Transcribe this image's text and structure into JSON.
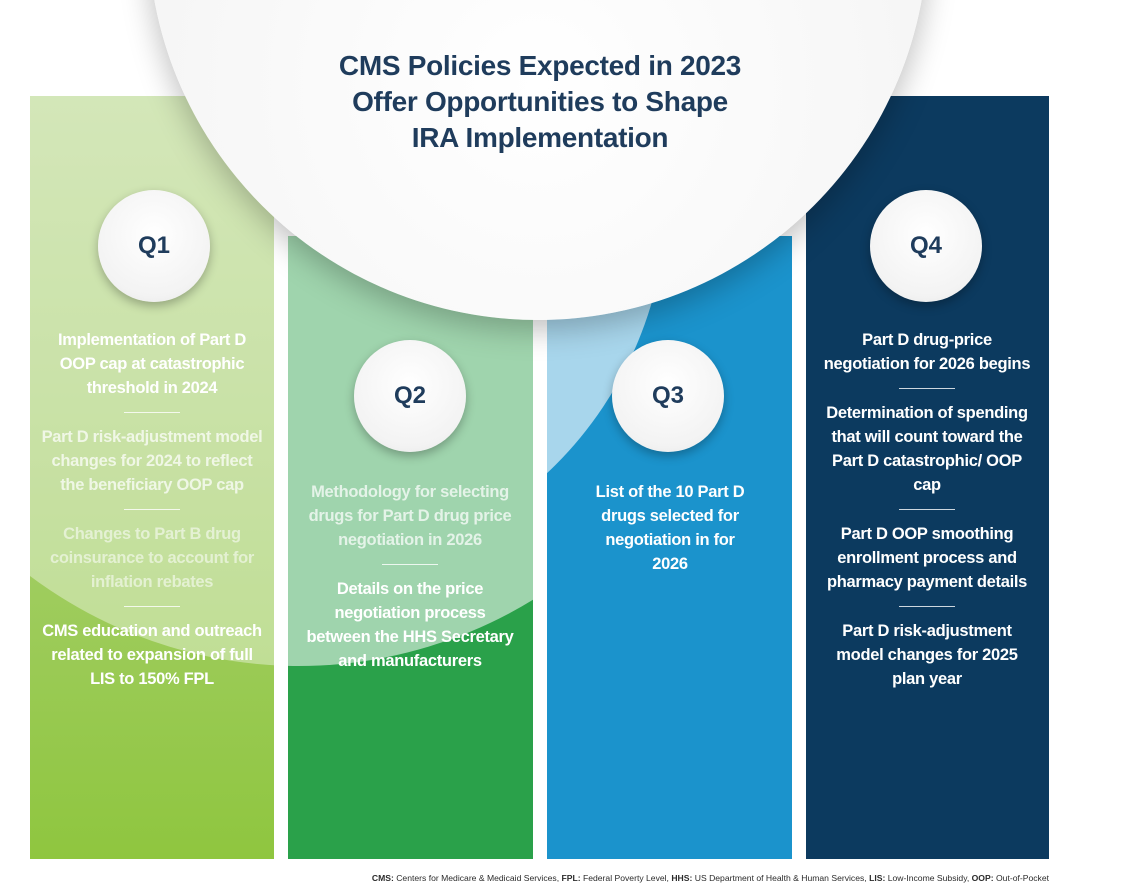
{
  "title": {
    "line1": "CMS Policies Expected in 2023",
    "line2": "Offer Opportunities to Shape",
    "line3": "IRA Implementation"
  },
  "quarters": [
    {
      "label": "Q1",
      "color": "#8fc63f",
      "items": [
        "Implementation of Part D OOP cap at catastrophic threshold in 2024",
        "Part D risk-adjustment model changes for 2024 to reflect the beneficiary OOP cap",
        "Changes to Part B drug coinsurance to account for inflation rebates",
        "CMS education and outreach related to expansion of full LIS to 150% FPL"
      ]
    },
    {
      "label": "Q2",
      "color": "#2aa14a",
      "items": [
        "Methodology for selecting drugs for Part D drug price negotiation in 2026",
        "Details on the price negotiation process between the HHS Secretary and manufacturers"
      ]
    },
    {
      "label": "Q3",
      "color": "#1b93cc",
      "items": [
        "List of the 10 Part D drugs selected for negotiation in for 2026"
      ]
    },
    {
      "label": "Q4",
      "color": "#0c3a5f",
      "items": [
        "Part D drug-price negotiation for 2026 begins",
        "Determination of spending that will count toward the Part D catastrophic/ OOP cap",
        "Part D OOP smoothing enrollment process and pharmacy payment details",
        "Part D risk-adjustment model changes for 2025 plan year"
      ]
    }
  ],
  "footnote": {
    "t1": "CMS:",
    "d1": " Centers for Medicare & Medicaid Services, ",
    "t2": "FPL:",
    "d2": " Federal Poverty Level, ",
    "t3": "HHS:",
    "d3": " US Department of Health & Human Services, ",
    "t4": "LIS:",
    "d4": " Low-Income Subsidy, ",
    "t5": "OOP:",
    "d5": " Out-of-Pocket"
  }
}
